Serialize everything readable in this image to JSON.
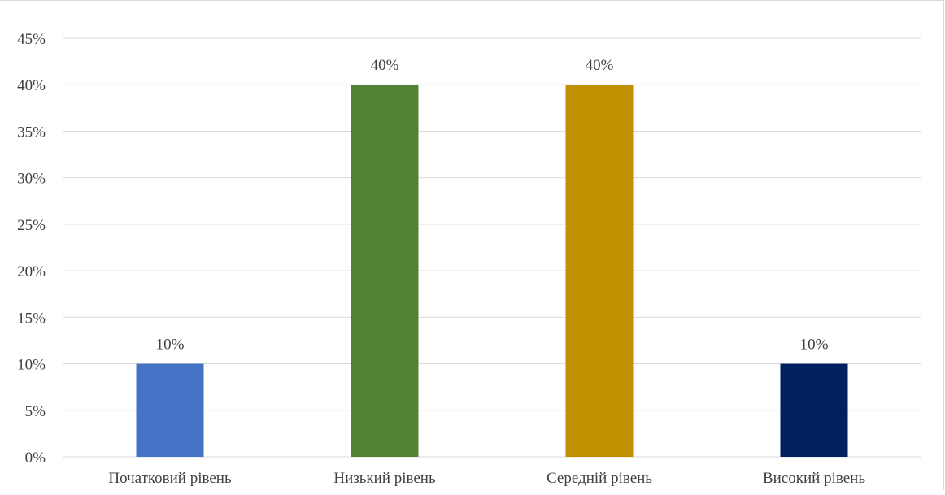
{
  "chart_data": {
    "type": "bar",
    "categories": [
      "Початковий рівень",
      "Низький рівень",
      "Середній рівень",
      "Високий рівень"
    ],
    "values": [
      10,
      40,
      40,
      10
    ],
    "data_labels": [
      "10%",
      "40%",
      "40%",
      "10%"
    ],
    "colors": [
      "#4472c4",
      "#548235",
      "#bf9000",
      "#002060"
    ],
    "y_ticks": [
      "0%",
      "5%",
      "10%",
      "15%",
      "20%",
      "25%",
      "30%",
      "35%",
      "40%",
      "45%"
    ],
    "ylim": [
      0,
      45
    ],
    "y_unit": "%",
    "grid": true,
    "legend": "none",
    "title": "",
    "xlabel": "",
    "ylabel": ""
  }
}
